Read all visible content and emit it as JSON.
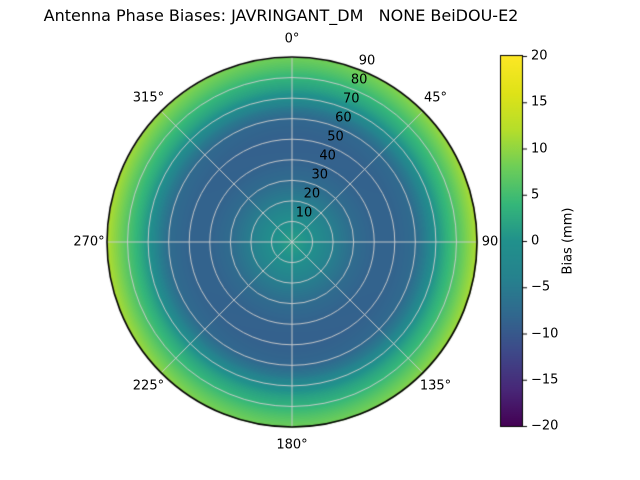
{
  "title": "Antenna Phase Biases: JAVRINGANT_DM   NONE BeiDOU-E2",
  "chart_data": {
    "type": "heatmap",
    "projection": "polar",
    "title": "Antenna Phase Biases: JAVRINGANT_DM   NONE BeiDOU-E2",
    "theta_ticks": [
      {
        "deg": 0,
        "label": "0°"
      },
      {
        "deg": 45,
        "label": "45°"
      },
      {
        "deg": 90,
        "label": "90"
      },
      {
        "deg": 135,
        "label": "135°"
      },
      {
        "deg": 180,
        "label": "180°"
      },
      {
        "deg": 225,
        "label": "225°"
      },
      {
        "deg": 270,
        "label": "270°"
      },
      {
        "deg": 315,
        "label": "315°"
      }
    ],
    "r_ticks": [
      10,
      20,
      30,
      40,
      50,
      60,
      70,
      80,
      90
    ],
    "r_label_azimuth_deg": 22.5,
    "r_max": 90,
    "grid": {
      "ring_step_deg": 10,
      "spoke_step_deg": 45,
      "grid_color": "#cccccc",
      "outline_color": "#000000"
    },
    "radial_profile": {
      "comment": "zenith angle (deg, 0=center) vs phase bias (mm), read from viridis colors",
      "zenith_deg": [
        0,
        10,
        20,
        30,
        40,
        50,
        60,
        65,
        70,
        75,
        80,
        85,
        90
      ],
      "bias_mm": [
        1.6,
        -0.5,
        -4.5,
        -7.4,
        -8.7,
        -8.8,
        -7.8,
        -5.0,
        -0.5,
        2.5,
        4.8,
        7.5,
        9.9
      ]
    },
    "azimuthal_modulation": {
      "comment": "rim is brighter (~+11.7mm) at azimuth 90/270, dimmer (~+8.1mm) at 0/180",
      "amplitude_mm": 1.8,
      "harmonic": 2,
      "peak_azimuth_deg": 90,
      "radial_power": 4
    },
    "colorbar": {
      "label": "Bias (mm)",
      "vmin": -20,
      "vmax": 20,
      "ticks": [
        20,
        15,
        10,
        5,
        0,
        -5,
        -10,
        -15,
        -20
      ],
      "tick_labels": [
        "20",
        "15",
        "10",
        "5",
        "0",
        "−5",
        "−10",
        "−15",
        "−20"
      ],
      "colormap": "viridis",
      "stops": [
        {
          "pos": 0.0,
          "color": "#440154"
        },
        {
          "pos": 0.1,
          "color": "#482878"
        },
        {
          "pos": 0.2,
          "color": "#3e4989"
        },
        {
          "pos": 0.3,
          "color": "#31688e"
        },
        {
          "pos": 0.4,
          "color": "#26828e"
        },
        {
          "pos": 0.5,
          "color": "#21918c"
        },
        {
          "pos": 0.6,
          "color": "#35b779"
        },
        {
          "pos": 0.7,
          "color": "#6ece58"
        },
        {
          "pos": 0.8,
          "color": "#b5de2b"
        },
        {
          "pos": 0.9,
          "color": "#dfe318"
        },
        {
          "pos": 1.0,
          "color": "#fde725"
        }
      ]
    }
  }
}
